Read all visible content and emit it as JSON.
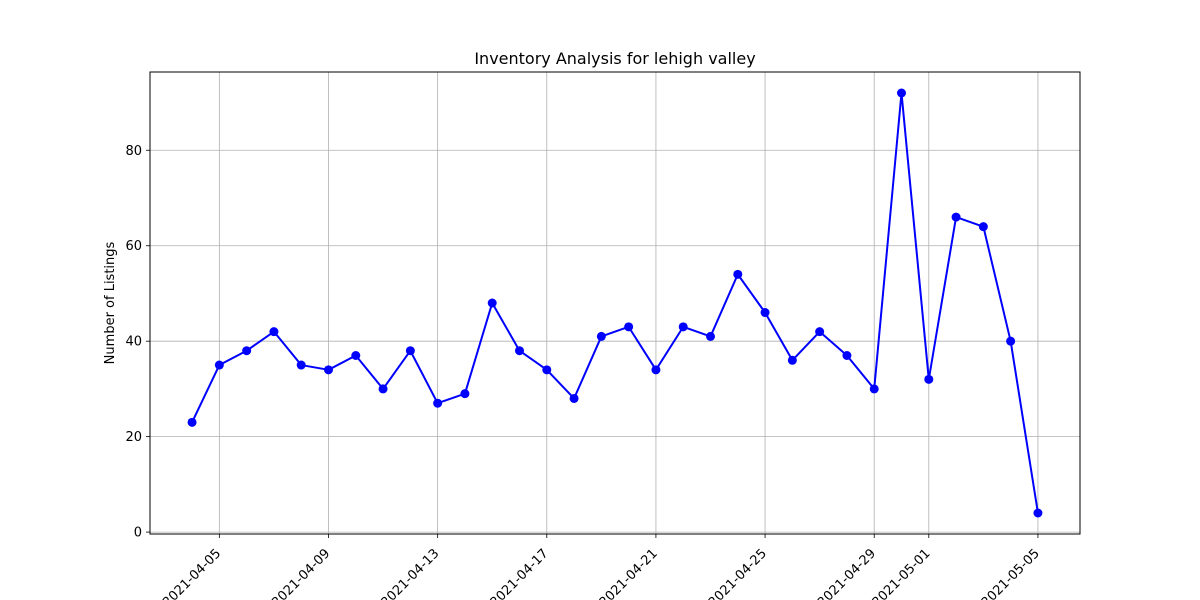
{
  "chart_data": {
    "type": "line",
    "title": "Inventory Analysis for lehigh valley",
    "xlabel": "",
    "ylabel": "Number of Listings",
    "x": [
      "2021-04-04",
      "2021-04-05",
      "2021-04-06",
      "2021-04-07",
      "2021-04-08",
      "2021-04-09",
      "2021-04-10",
      "2021-04-11",
      "2021-04-12",
      "2021-04-13",
      "2021-04-14",
      "2021-04-15",
      "2021-04-16",
      "2021-04-17",
      "2021-04-18",
      "2021-04-19",
      "2021-04-20",
      "2021-04-21",
      "2021-04-22",
      "2021-04-23",
      "2021-04-24",
      "2021-04-25",
      "2021-04-26",
      "2021-04-27",
      "2021-04-28",
      "2021-04-29",
      "2021-04-30",
      "2021-05-01",
      "2021-05-02",
      "2021-05-03",
      "2021-05-04",
      "2021-05-05"
    ],
    "series": [
      {
        "values": [
          23,
          35,
          38,
          42,
          35,
          34,
          37,
          30,
          38,
          27,
          29,
          48,
          38,
          34,
          28,
          41,
          43,
          34,
          43,
          41,
          54,
          46,
          36,
          42,
          37,
          30,
          92,
          32,
          66,
          64,
          40,
          4
        ],
        "color": "#0000ff",
        "marker": "circle"
      }
    ],
    "xlim": [
      "2021-04-02T11:00",
      "2021-05-06T13:00"
    ],
    "ylim": [
      -0.4,
      96.4
    ],
    "xticks": [
      "2021-04-05",
      "2021-04-09",
      "2021-04-13",
      "2021-04-17",
      "2021-04-21",
      "2021-04-25",
      "2021-04-29",
      "2021-05-01",
      "2021-05-05"
    ],
    "yticks": [
      0,
      20,
      40,
      60,
      80
    ],
    "grid": true,
    "x_tick_rotation": 45
  }
}
